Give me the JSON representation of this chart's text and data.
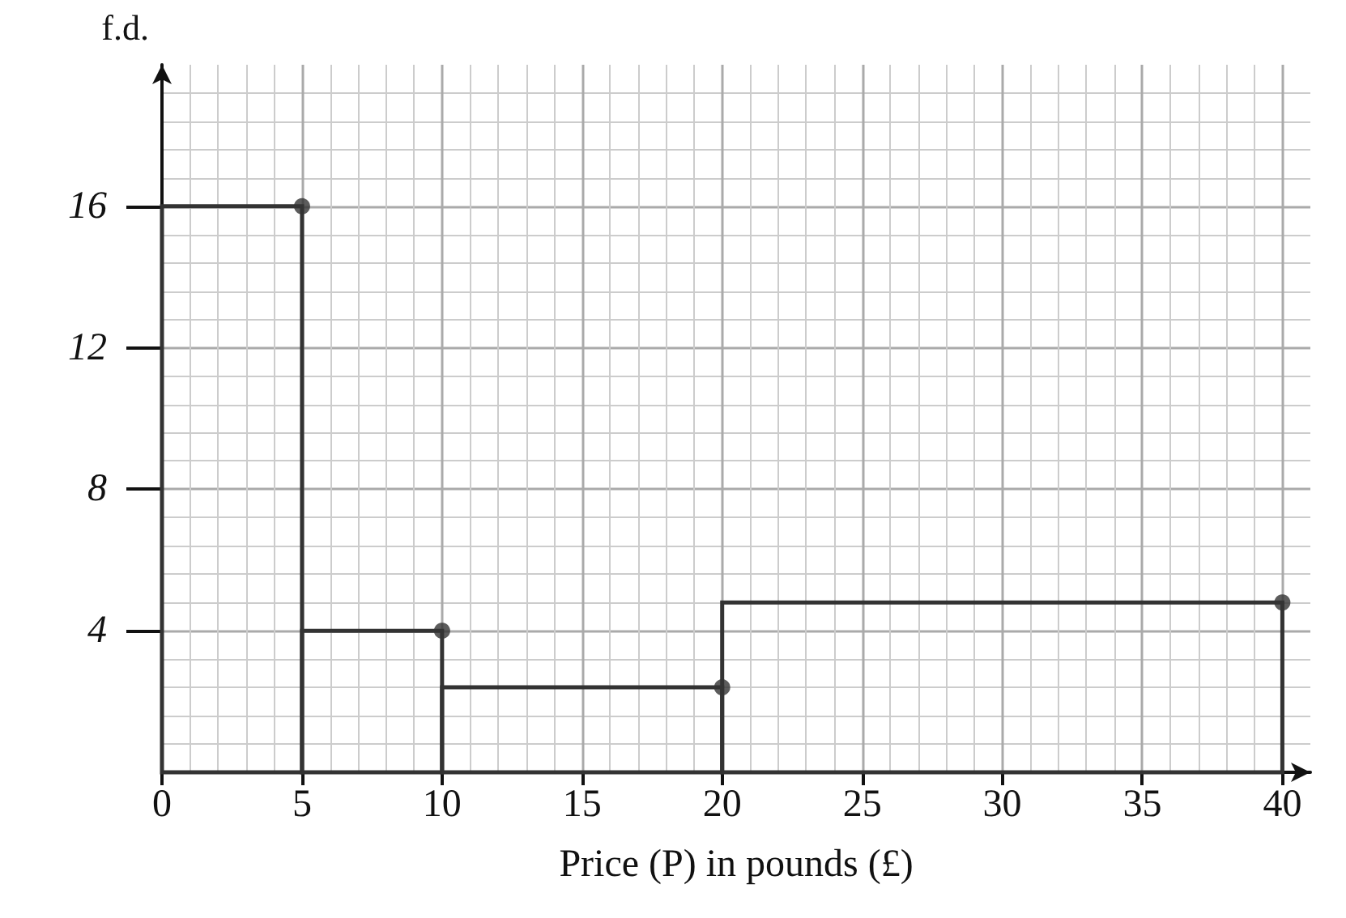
{
  "chart_data": {
    "type": "histogram",
    "xlabel": "Price (P) in pounds (£)",
    "ylabel": "f.d.",
    "bins": [
      0,
      5,
      10,
      20,
      40
    ],
    "values": [
      16,
      4,
      2.4,
      4.8
    ],
    "color": "#333333",
    "xlim": [
      0,
      41
    ],
    "xticks": [
      0,
      5,
      10,
      15,
      20,
      25,
      30,
      35,
      40
    ],
    "ylim": [
      0,
      20
    ],
    "yticks": [
      4,
      8,
      12,
      16
    ],
    "series": [
      {
        "type": "scatter",
        "x": [
          5,
          10,
          20,
          40
        ],
        "values": [
          16,
          4,
          2.4,
          4.8
        ],
        "color": "#333333"
      }
    ],
    "grid": true,
    "marker": "circle"
  }
}
